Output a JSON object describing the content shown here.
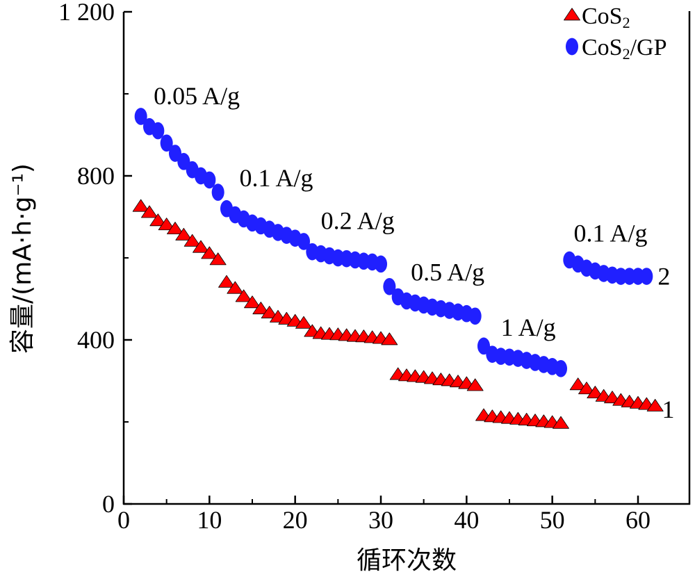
{
  "chart_data": {
    "type": "scatter",
    "xlabel": "循环次数",
    "ylabel": "容量/(mA·h·g⁻¹)",
    "xlim": [
      0,
      66
    ],
    "ylim": [
      0,
      1200
    ],
    "xticks": [
      0,
      10,
      20,
      30,
      40,
      50,
      60
    ],
    "yticks": [
      0,
      400,
      800,
      1200
    ],
    "ytick_labels": [
      "0",
      "400",
      "800",
      "1 200"
    ],
    "xtick_labels": [
      "0",
      "10",
      "20",
      "30",
      "40",
      "50",
      "60"
    ],
    "grid": false,
    "legend_position": "top-right",
    "legend": [
      {
        "base": "CoS",
        "sub": "2",
        "suffix": "",
        "color": "#ff0000",
        "marker": "triangle"
      },
      {
        "base": "CoS",
        "sub": "2",
        "suffix": "/GP",
        "color": "#2020ff",
        "marker": "circle"
      }
    ],
    "annotations": [
      {
        "text": "0.05 A/g",
        "x": 3.5,
        "y": 975
      },
      {
        "text": "0.1 A/g",
        "x": 13.5,
        "y": 775
      },
      {
        "text": "0.2 A/g",
        "x": 23,
        "y": 670
      },
      {
        "text": "0.5 A/g",
        "x": 33.5,
        "y": 545
      },
      {
        "text": "1 A/g",
        "x": 44,
        "y": 410
      },
      {
        "text": "0.1 A/g",
        "x": 52.5,
        "y": 640
      },
      {
        "text": "2",
        "x": 62.3,
        "y": 535
      },
      {
        "text": "1",
        "x": 62.8,
        "y": 210
      }
    ],
    "series": [
      {
        "name": "CoS2",
        "color": "#ff0000",
        "marker": "triangle",
        "x": [
          2,
          3,
          4,
          5,
          6,
          7,
          8,
          9,
          10,
          11,
          12,
          13,
          14,
          15,
          16,
          17,
          18,
          19,
          20,
          21,
          22,
          23,
          24,
          25,
          26,
          27,
          28,
          29,
          30,
          31,
          32,
          33,
          34,
          35,
          36,
          37,
          38,
          39,
          40,
          41,
          42,
          43,
          44,
          45,
          46,
          47,
          48,
          49,
          50,
          51,
          53,
          54,
          55,
          56,
          57,
          58,
          59,
          60,
          61,
          62
        ],
        "y": [
          725,
          710,
          690,
          680,
          670,
          655,
          640,
          625,
          610,
          595,
          540,
          525,
          505,
          490,
          475,
          465,
          455,
          450,
          445,
          440,
          420,
          415,
          413,
          412,
          410,
          408,
          407,
          405,
          403,
          400,
          315,
          312,
          310,
          308,
          305,
          302,
          300,
          297,
          293,
          288,
          215,
          212,
          210,
          208,
          206,
          204,
          202,
          200,
          198,
          196,
          290,
          280,
          270,
          262,
          258,
          252,
          248,
          245,
          242,
          238
        ]
      },
      {
        "name": "CoS2/GP",
        "color": "#2020ff",
        "marker": "circle",
        "x": [
          2,
          3,
          4,
          5,
          6,
          7,
          8,
          9,
          10,
          11,
          12,
          13,
          14,
          15,
          16,
          17,
          18,
          19,
          20,
          21,
          22,
          23,
          24,
          25,
          26,
          27,
          28,
          29,
          30,
          31,
          32,
          33,
          34,
          35,
          36,
          37,
          38,
          39,
          40,
          41,
          42,
          43,
          44,
          45,
          46,
          47,
          48,
          49,
          50,
          51,
          52,
          53,
          54,
          55,
          56,
          57,
          58,
          59,
          60,
          61
        ],
        "y": [
          945,
          920,
          910,
          880,
          855,
          835,
          815,
          800,
          790,
          760,
          720,
          705,
          695,
          685,
          678,
          670,
          662,
          655,
          648,
          640,
          615,
          610,
          605,
          600,
          598,
          595,
          592,
          590,
          585,
          530,
          505,
          495,
          490,
          485,
          480,
          476,
          472,
          468,
          464,
          458,
          385,
          365,
          360,
          358,
          355,
          350,
          345,
          340,
          335,
          330,
          595,
          585,
          575,
          568,
          562,
          558,
          555,
          555,
          555,
          555
        ]
      }
    ]
  }
}
